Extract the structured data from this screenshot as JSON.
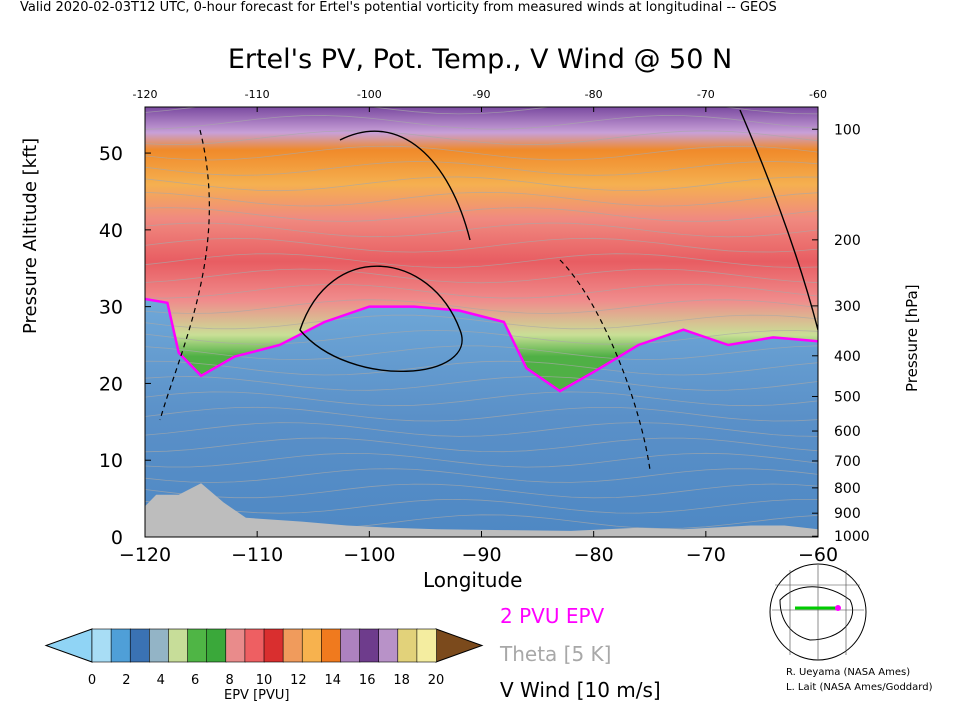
{
  "header": {
    "valid_line": "Valid 2020-02-03T12 UTC, 0-hour forecast for Ertel's potential vorticity from measured winds at longitudinal -- GEOS",
    "title": "Ertel's PV, Pot. Temp., V Wind @ 50 N"
  },
  "chart_data": {
    "type": "heatmap",
    "title": "Ertel's PV, Pot. Temp., V Wind @ 50 N",
    "xlabel": "Longitude",
    "ylabel": "Pressure Altitude [kft]",
    "y2label": "Pressure [hPa]",
    "xlim": [
      -120,
      -60
    ],
    "ylim": [
      0,
      56
    ],
    "x_ticks": [
      -120,
      -110,
      -100,
      -90,
      -80,
      -70,
      -60
    ],
    "x_tick_labels": [
      "−120",
      "−110",
      "−100",
      "−90",
      "−80",
      "−70",
      "−60"
    ],
    "y_ticks": [
      0,
      10,
      20,
      30,
      40,
      50
    ],
    "top_ticks": [
      -120,
      -110,
      -100,
      -90,
      -80,
      -70,
      -60
    ],
    "pressure_ticks": [
      {
        "hpa": 100,
        "kft": 53.1
      },
      {
        "hpa": 200,
        "kft": 38.7
      },
      {
        "hpa": 300,
        "kft": 30.1
      },
      {
        "hpa": 400,
        "kft": 23.6
      },
      {
        "hpa": 500,
        "kft": 18.3
      },
      {
        "hpa": 600,
        "kft": 13.8
      },
      {
        "hpa": 700,
        "kft": 9.9
      },
      {
        "hpa": 800,
        "kft": 6.4
      },
      {
        "hpa": 900,
        "kft": 3.1
      },
      {
        "hpa": 1000,
        "kft": 0.1
      }
    ],
    "pv_2pvu_height_kft": [
      {
        "lon": -120,
        "kft": 31
      },
      {
        "lon": -118,
        "kft": 30.5
      },
      {
        "lon": -117,
        "kft": 24
      },
      {
        "lon": -115,
        "kft": 21
      },
      {
        "lon": -112,
        "kft": 23.5
      },
      {
        "lon": -108,
        "kft": 25
      },
      {
        "lon": -104,
        "kft": 28
      },
      {
        "lon": -100,
        "kft": 30
      },
      {
        "lon": -96,
        "kft": 30
      },
      {
        "lon": -92,
        "kft": 29.5
      },
      {
        "lon": -88,
        "kft": 28
      },
      {
        "lon": -86,
        "kft": 22
      },
      {
        "lon": -83,
        "kft": 19
      },
      {
        "lon": -80,
        "kft": 21.5
      },
      {
        "lon": -76,
        "kft": 25
      },
      {
        "lon": -72,
        "kft": 27
      },
      {
        "lon": -68,
        "kft": 25
      },
      {
        "lon": -64,
        "kft": 26
      },
      {
        "lon": -60,
        "kft": 25.5
      }
    ],
    "terrain_kft": [
      {
        "lon": -120,
        "kft": 4
      },
      {
        "lon": -119,
        "kft": 5.5
      },
      {
        "lon": -117,
        "kft": 5.5
      },
      {
        "lon": -115,
        "kft": 7
      },
      {
        "lon": -113,
        "kft": 4.5
      },
      {
        "lon": -111,
        "kft": 2.5
      },
      {
        "lon": -106,
        "kft": 2
      },
      {
        "lon": -102,
        "kft": 1.5
      },
      {
        "lon": -98,
        "kft": 1.2
      },
      {
        "lon": -94,
        "kft": 1
      },
      {
        "lon": -88,
        "kft": 0.9
      },
      {
        "lon": -82,
        "kft": 0.8
      },
      {
        "lon": -76,
        "kft": 1.2
      },
      {
        "lon": -72,
        "kft": 1
      },
      {
        "lon": -66,
        "kft": 1.5
      },
      {
        "lon": -63,
        "kft": 1.5
      },
      {
        "lon": -60,
        "kft": 1
      }
    ],
    "colorbar": {
      "label": "EPV [PVU]",
      "ticks": [
        0,
        2,
        4,
        6,
        8,
        10,
        12,
        14,
        16,
        18,
        20
      ],
      "colors": [
        "#a8ddf5",
        "#4f9fd8",
        "#3a72b4",
        "#93b4c6",
        "#c7dd99",
        "#4fb545",
        "#3aa83a",
        "#e98b8b",
        "#ee5f62",
        "#d92f2f",
        "#f09b5c",
        "#f7b24e",
        "#f07a1e",
        "#ad82c0",
        "#6e3c8c",
        "#b892c8",
        "#e2d27a",
        "#f4eda0"
      ],
      "under_color": "#90d4f5",
      "over_color": "#7b4a1c"
    },
    "legend": [
      {
        "label": "2 PVU EPV",
        "color": "#ff00ff"
      },
      {
        "label": "Theta [5 K]",
        "color": "#a8a8a8"
      },
      {
        "label": "V Wind [10 m/s]",
        "color": "#000000"
      }
    ]
  },
  "credits": [
    "R. Ueyama (NASA Ames)",
    "L. Lait (NASA Ames/Goddard)"
  ],
  "colors": {
    "pv_contour": "#ff00ff",
    "theta": "#a8a8a8",
    "terrain": "#bdbdbd"
  }
}
